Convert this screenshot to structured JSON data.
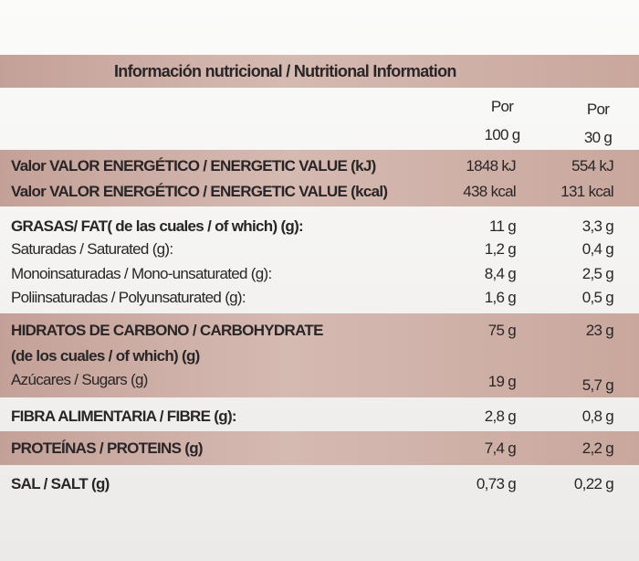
{
  "title": "Información nutricional / Nutritional Information",
  "header": {
    "col1": [
      "Por",
      "100 g"
    ],
    "col2": [
      "Por",
      "30 g"
    ]
  },
  "table": {
    "rows": [
      [
        "Valor VALOR ENERGÉTICO / ENERGETIC VALUE (kJ)",
        "1848 kJ",
        "554 kJ"
      ],
      [
        "Valor VALOR ENERGÉTICO / ENERGETIC VALUE (kcal)",
        "438 kcal",
        "131 kcal"
      ],
      [
        "GRASAS/ FAT( de las cuales / of which) (g):",
        "11 g",
        "3,3 g"
      ],
      [
        "Saturadas / Saturated (g):",
        "1,2 g",
        "0,4 g"
      ],
      [
        "Monoinsaturadas / Mono-unsaturated (g):",
        "8,4 g",
        "2,5 g"
      ],
      [
        "Poliinsaturadas / Polyunsaturated (g):",
        "1,6 g",
        "0,5 g"
      ],
      [
        "HIDRATOS DE CARBONO / CARBOHYDRATE",
        "75 g",
        "23 g"
      ],
      [
        "(de los cuales / of which) (g)"
      ],
      [
        "Azúcares / Sugars (g)",
        "19 g",
        "5,7 g"
      ],
      [
        "FIBRA ALIMENTARIA / FIBRE (g):",
        "2,8 g",
        "0,8 g"
      ],
      [
        "PROTEÍNAS / PROTEINS (g)",
        "7,4 g",
        "2,2 g"
      ],
      [
        "SAL / SALT (g)",
        "0,73 g",
        "0,22 g"
      ]
    ]
  }
}
